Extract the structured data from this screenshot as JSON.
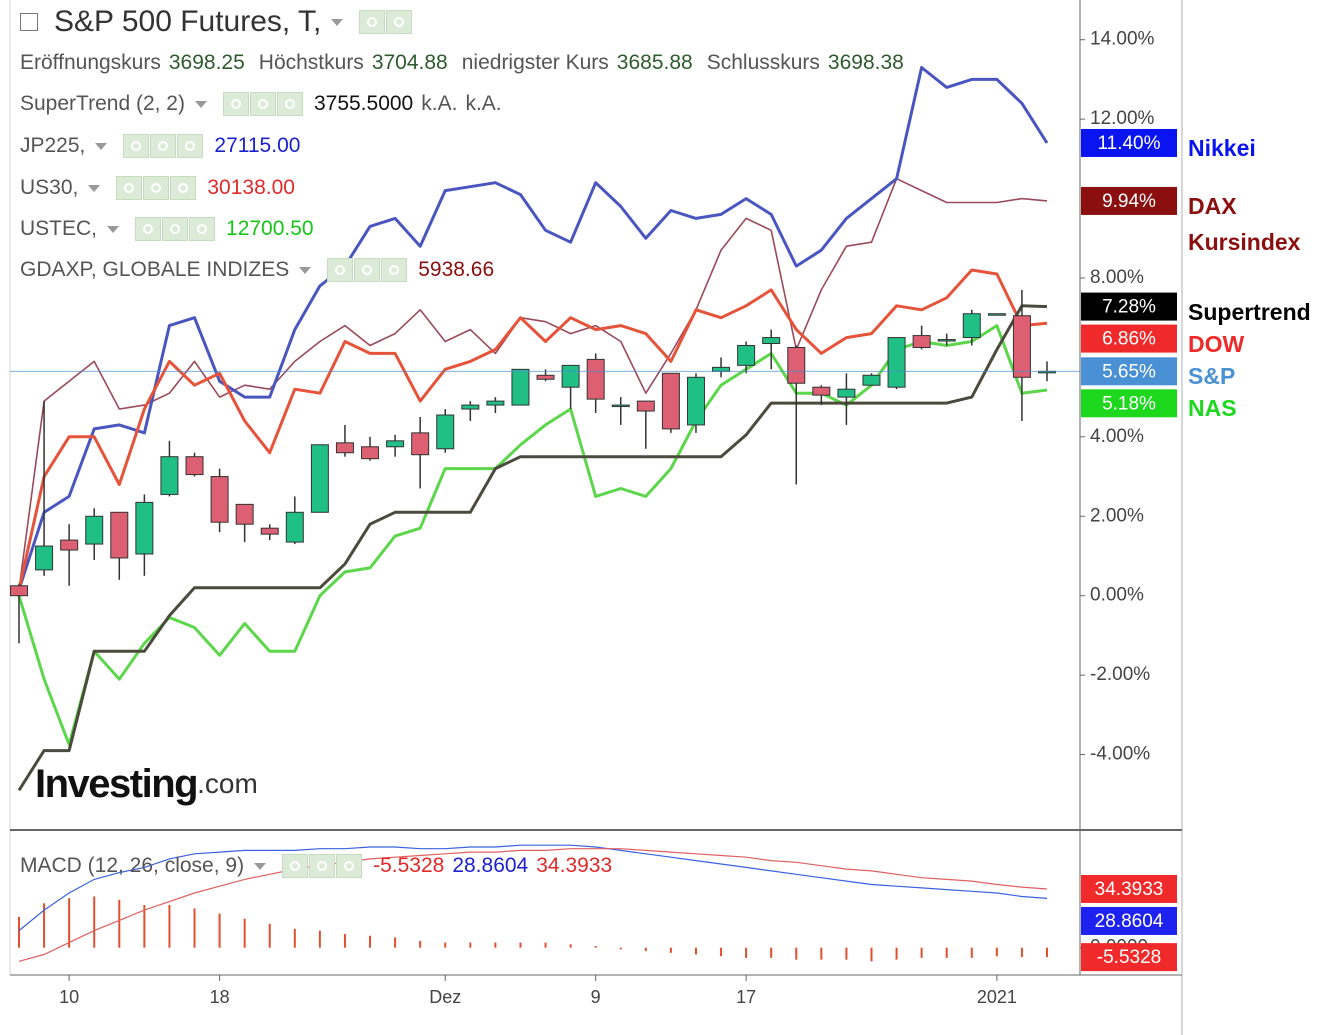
{
  "header": {
    "title": "S&P 500 Futures, T,",
    "ohlc": [
      {
        "label": "Eröffnungskurs",
        "value": "3698.25"
      },
      {
        "label": "Höchstkurs",
        "value": "3704.88"
      },
      {
        "label": "niedrigster Kurs",
        "value": "3685.88"
      },
      {
        "label": "Schlusskurs",
        "value": "3698.38"
      }
    ],
    "indicators": [
      {
        "name": "SuperTrend (2, 2)",
        "values": [
          "3755.5000",
          "k.A.",
          "k.A."
        ]
      },
      {
        "name": "JP225,",
        "values": [
          "27115.00"
        ]
      },
      {
        "name": "US30,",
        "values": [
          "30138.00"
        ]
      },
      {
        "name": "USTEC,",
        "values": [
          "12700.50"
        ]
      },
      {
        "name": "GDAXP, GLOBALE INDIZES",
        "values": [
          "5938.66"
        ]
      }
    ],
    "macd_name": "MACD (12, 26, close, 9)",
    "logo": [
      "Investing",
      ".com"
    ]
  },
  "chart_data": [
    {
      "type": "candlestick",
      "categories": [
        null,
        null,
        "10",
        null,
        null,
        null,
        null,
        null,
        "18",
        null,
        null,
        null,
        null,
        null,
        null,
        null,
        null,
        "Dez",
        null,
        null,
        null,
        null,
        null,
        "9",
        null,
        null,
        null,
        null,
        null,
        "17",
        null,
        null,
        null,
        null,
        null,
        null,
        null,
        null,
        null,
        "2021",
        null,
        null
      ],
      "ylim": [
        -5.9,
        15.0
      ],
      "yticks": [
        {
          "value": -4,
          "label": "-4.00%"
        },
        {
          "value": -2,
          "label": "-2.00%"
        },
        {
          "value": 0,
          "label": "0.00%"
        },
        {
          "value": 2,
          "label": "2.00%"
        },
        {
          "value": 4,
          "label": "4.00%"
        },
        {
          "value": 8,
          "label": "8.00%"
        },
        {
          "value": 12,
          "label": "12.00%"
        },
        {
          "value": 14,
          "label": "14.00%"
        }
      ],
      "grid": false,
      "candles": {
        "name": "S&P",
        "up_color": "#1fbf85",
        "down_color": "#dc5f72",
        "label_color": "#4a90d4",
        "value_label": "5.65%",
        "open": [
          0.25,
          0.65,
          1.4,
          1.3,
          2.1,
          1.05,
          2.55,
          3.5,
          3.0,
          2.3,
          1.7,
          1.35,
          2.1,
          3.85,
          3.75,
          3.75,
          4.1,
          3.7,
          4.7,
          4.8,
          4.8,
          5.55,
          5.25,
          5.95,
          4.8,
          4.9,
          5.6,
          4.3,
          5.65,
          5.8,
          6.35,
          6.25,
          5.25,
          5.0,
          5.3,
          5.25,
          6.55,
          6.45,
          6.5,
          7.1,
          7.05,
          5.65
        ],
        "high": [
          0.3,
          4.9,
          1.8,
          2.2,
          2.1,
          2.55,
          3.9,
          3.6,
          3.2,
          2.3,
          1.8,
          2.5,
          3.8,
          4.3,
          4.0,
          4.05,
          4.5,
          4.7,
          4.9,
          5.0,
          5.7,
          5.7,
          5.8,
          6.1,
          5.0,
          4.9,
          5.6,
          5.6,
          6.0,
          6.4,
          6.7,
          6.3,
          5.3,
          5.6,
          5.6,
          6.5,
          6.8,
          6.6,
          7.2,
          7.1,
          7.7,
          5.9
        ],
        "low": [
          -1.2,
          0.5,
          0.25,
          0.9,
          0.4,
          0.5,
          2.5,
          3.0,
          1.6,
          1.35,
          1.4,
          1.3,
          2.1,
          3.5,
          3.4,
          3.5,
          2.7,
          3.6,
          4.4,
          4.6,
          4.8,
          5.4,
          4.7,
          4.6,
          4.3,
          3.7,
          4.1,
          4.1,
          5.5,
          5.6,
          5.7,
          2.8,
          4.8,
          4.3,
          5.3,
          5.2,
          6.2,
          6.3,
          6.3,
          7.1,
          4.4,
          5.4
        ],
        "close": [
          0.0,
          1.25,
          1.15,
          2.0,
          0.95,
          2.35,
          3.5,
          3.05,
          1.85,
          1.8,
          1.55,
          2.1,
          3.8,
          3.6,
          3.45,
          3.9,
          3.55,
          4.55,
          4.8,
          4.9,
          5.7,
          5.45,
          5.8,
          4.95,
          4.8,
          4.65,
          4.2,
          5.5,
          5.75,
          6.3,
          6.5,
          5.35,
          5.05,
          5.2,
          5.55,
          6.5,
          6.25,
          6.45,
          7.1,
          7.1,
          5.5,
          5.65
        ]
      },
      "series": [
        {
          "name": "DAX Kursindex",
          "color": "#9a4a5a",
          "label_color": "#8b0f0f",
          "line_width": 1.6,
          "value_label": "9.94%",
          "values": [
            0.15,
            4.9,
            5.4,
            5.9,
            4.7,
            4.8,
            5.1,
            5.9,
            5.0,
            5.3,
            5.2,
            5.9,
            6.4,
            6.8,
            6.3,
            6.6,
            7.2,
            6.4,
            6.7,
            6.1,
            7.0,
            6.9,
            6.6,
            6.8,
            6.4,
            5.1,
            6.1,
            7.2,
            8.7,
            9.5,
            9.2,
            6.2,
            7.7,
            8.8,
            8.9,
            10.5,
            10.2,
            9.9,
            9.9,
            9.9,
            10.0,
            9.94
          ]
        },
        {
          "name": "Nikkei",
          "color": "#4a56c0",
          "label_color": "#0a14f0",
          "line_width": 3,
          "value_label": "11.40%",
          "values": [
            0.15,
            2.1,
            2.5,
            4.2,
            4.3,
            4.1,
            6.8,
            7.0,
            5.4,
            5.0,
            5.0,
            6.7,
            7.8,
            8.3,
            9.3,
            9.5,
            8.8,
            10.2,
            10.3,
            10.4,
            10.1,
            9.2,
            8.9,
            10.4,
            9.8,
            9.0,
            9.7,
            9.5,
            9.6,
            10.0,
            9.6,
            8.3,
            8.7,
            9.5,
            10.0,
            10.5,
            13.3,
            12.8,
            13.0,
            13.0,
            12.4,
            11.4
          ]
        },
        {
          "name": "NAS",
          "color": "#5cd64a",
          "label_color": "#1ed81e",
          "line_width": 3,
          "value_label": "5.18%",
          "values": [
            0,
            -2.1,
            -3.75,
            -1.4,
            -2.1,
            -1.2,
            -0.55,
            -0.8,
            -1.5,
            -0.7,
            -1.4,
            -1.4,
            0.0,
            0.6,
            0.7,
            1.5,
            1.7,
            3.2,
            3.2,
            3.2,
            3.8,
            4.3,
            4.7,
            2.5,
            2.7,
            2.5,
            3.2,
            4.4,
            5.3,
            5.7,
            6.1,
            5.1,
            5.1,
            4.8,
            5.3,
            6.2,
            6.4,
            6.3,
            6.4,
            6.8,
            5.1,
            5.18
          ]
        },
        {
          "name": "DOW",
          "color": "#e5533a",
          "label_color": "#f02a2a",
          "line_width": 3,
          "value_label": "6.86%",
          "values": [
            0.15,
            3.0,
            4.0,
            4.0,
            2.8,
            4.7,
            5.9,
            5.3,
            5.6,
            4.4,
            3.6,
            5.2,
            5.1,
            6.4,
            6.1,
            6.1,
            4.9,
            5.7,
            5.9,
            6.2,
            7.0,
            6.4,
            7.0,
            6.7,
            6.8,
            6.6,
            5.9,
            7.2,
            7.0,
            7.3,
            7.7,
            6.7,
            6.1,
            6.5,
            6.6,
            7.3,
            7.2,
            7.5,
            8.2,
            8.1,
            6.8,
            6.86
          ]
        },
        {
          "name": "Supertrend",
          "color": "#4b4a3c",
          "label_color": "#000000",
          "line_width": 3,
          "value_label": "7.28%",
          "values": [
            -4.9,
            -3.9,
            -3.9,
            -1.4,
            -1.4,
            -1.4,
            -0.5,
            0.2,
            0.2,
            0.2,
            0.2,
            0.2,
            0.2,
            0.8,
            1.8,
            2.1,
            2.1,
            2.1,
            2.1,
            3.2,
            3.5,
            3.5,
            3.5,
            3.5,
            3.5,
            3.5,
            3.5,
            3.5,
            3.5,
            4.05,
            4.85,
            4.85,
            4.85,
            4.85,
            4.85,
            4.85,
            4.85,
            4.85,
            5.0,
            6.2,
            7.3,
            7.28
          ]
        }
      ]
    },
    {
      "type": "line",
      "ylim": [
        -16,
        66
      ],
      "yticks": [
        {
          "value": 0,
          "label": "0.0000"
        }
      ],
      "grid": false,
      "histogram": {
        "color": "#e0502e",
        "value_label": "-5.5328",
        "values": [
          18,
          26,
          29,
          30,
          28,
          25,
          25,
          23,
          20,
          17,
          14,
          11,
          10,
          8,
          7,
          6,
          4,
          3,
          3,
          3,
          3,
          3,
          2,
          1,
          -1,
          -2,
          -3,
          -4,
          -5,
          -6,
          -6,
          -7,
          -7,
          -7,
          -8,
          -7,
          -6,
          -6,
          -6,
          -5,
          -5.5,
          -5.5328
        ]
      },
      "series": [
        {
          "color": "#3b62e0",
          "label_color": "#1e22f0",
          "value_label": "28.8604",
          "values": [
            10,
            22,
            32,
            40,
            44,
            47,
            52,
            55,
            56,
            57,
            57,
            57,
            58,
            58,
            59,
            59,
            58,
            58,
            59,
            59,
            60,
            60,
            60,
            59,
            57,
            55,
            53,
            51,
            49,
            47,
            45,
            43,
            41,
            39,
            37,
            36,
            35,
            34,
            33,
            32,
            30,
            28.8604
          ]
        },
        {
          "color": "#e06060",
          "label_color": "#f02a2a",
          "value_label": "34.3933",
          "values": [
            -8,
            -4,
            3,
            10,
            16,
            22,
            27,
            32,
            36,
            40,
            43,
            46,
            48,
            50,
            52,
            53,
            54,
            55,
            56,
            56,
            57,
            57,
            58,
            58,
            58,
            57,
            56,
            55,
            54,
            53,
            51,
            50,
            48,
            46,
            45,
            43,
            41,
            40,
            39,
            37,
            35.5,
            34.3933
          ]
        }
      ]
    }
  ]
}
